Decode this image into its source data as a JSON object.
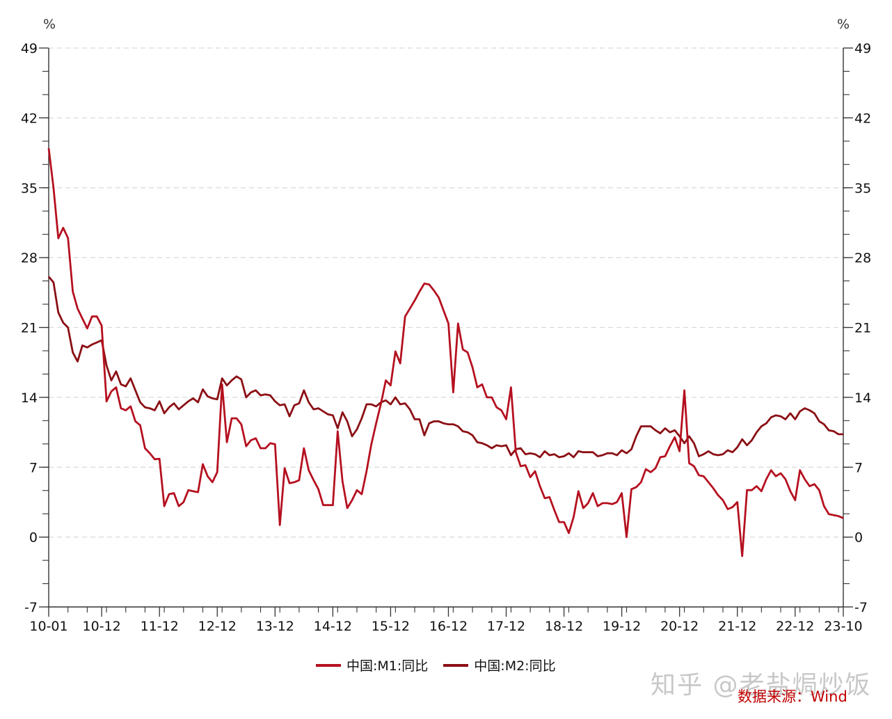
{
  "chart_data": {
    "type": "line",
    "title": "",
    "xlabel": "",
    "ylabel_left": "%",
    "ylabel_right": "%",
    "ylim": [
      -7,
      49
    ],
    "yticks": [
      -7,
      0,
      7,
      14,
      21,
      28,
      35,
      42,
      49
    ],
    "grid": "horizontal dashed",
    "legend_position": "bottom",
    "x_start": "2010-01",
    "x_end": "2023-10",
    "x_tick_labels": [
      "10-01",
      "10-12",
      "11-12",
      "12-12",
      "13-12",
      "14-12",
      "15-12",
      "16-12",
      "17-12",
      "18-12",
      "19-12",
      "20-12",
      "21-12",
      "22-12",
      "23-10"
    ],
    "x_tick_index": [
      0,
      11,
      23,
      35,
      47,
      59,
      71,
      83,
      95,
      107,
      119,
      131,
      143,
      155,
      165
    ],
    "series": [
      {
        "name": "中国:M1:同比",
        "color": "#b5101f",
        "values": [
          38.96,
          35.0,
          29.94,
          30.99,
          29.97,
          24.6,
          22.9,
          21.9,
          20.9,
          22.1,
          22.1,
          21.19,
          13.6,
          14.6,
          15.0,
          12.9,
          12.7,
          13.1,
          11.6,
          11.2,
          8.9,
          8.4,
          7.8,
          7.85,
          3.1,
          4.3,
          4.4,
          3.1,
          3.5,
          4.7,
          4.6,
          4.5,
          7.3,
          6.1,
          5.5,
          6.5,
          15.3,
          9.5,
          11.9,
          11.9,
          11.3,
          9.1,
          9.7,
          9.9,
          8.9,
          8.9,
          9.4,
          9.3,
          1.2,
          6.9,
          5.4,
          5.5,
          5.7,
          8.9,
          6.7,
          5.7,
          4.8,
          3.2,
          3.2,
          3.2,
          10.6,
          5.6,
          2.9,
          3.7,
          4.7,
          4.3,
          6.6,
          9.3,
          11.4,
          13.4,
          15.7,
          15.2,
          18.6,
          17.4,
          22.1,
          22.9,
          23.7,
          24.6,
          25.4,
          25.3,
          24.7,
          24.0,
          22.7,
          21.4,
          14.5,
          21.4,
          18.8,
          18.5,
          17.0,
          15.0,
          15.3,
          14.0,
          14.0,
          13.0,
          12.7,
          11.8,
          15.0,
          8.5,
          7.1,
          7.2,
          6.0,
          6.6,
          5.1,
          3.9,
          4.0,
          2.7,
          1.5,
          1.5,
          0.4,
          2.0,
          4.6,
          2.9,
          3.4,
          4.4,
          3.1,
          3.4,
          3.4,
          3.3,
          3.5,
          4.4,
          0.0,
          4.8,
          5.0,
          5.5,
          6.8,
          6.5,
          6.9,
          8.0,
          8.1,
          9.1,
          10.0,
          8.6,
          14.7,
          7.4,
          7.1,
          6.2,
          6.1,
          5.5,
          4.9,
          4.2,
          3.7,
          2.8,
          3.0,
          3.5,
          -1.9,
          4.7,
          4.7,
          5.1,
          4.6,
          5.8,
          6.7,
          6.1,
          6.4,
          5.8,
          4.6,
          3.7,
          6.7,
          5.8,
          5.1,
          5.3,
          4.7,
          3.1,
          2.3,
          2.2,
          2.1,
          1.9
        ]
      },
      {
        "name": "中国:M2:同比",
        "color": "#8b0f14",
        "values": [
          26.09,
          25.52,
          22.5,
          21.48,
          21.0,
          18.5,
          17.6,
          19.2,
          19.0,
          19.3,
          19.5,
          19.72,
          17.2,
          15.7,
          16.6,
          15.3,
          15.1,
          15.9,
          14.7,
          13.5,
          13.0,
          12.9,
          12.7,
          13.6,
          12.4,
          13.0,
          13.4,
          12.8,
          13.2,
          13.6,
          13.9,
          13.5,
          14.8,
          14.1,
          13.9,
          13.8,
          15.9,
          15.2,
          15.7,
          16.1,
          15.8,
          14.0,
          14.5,
          14.7,
          14.2,
          14.3,
          14.2,
          13.6,
          13.2,
          13.3,
          12.1,
          13.2,
          13.4,
          14.7,
          13.5,
          12.8,
          12.9,
          12.6,
          12.3,
          12.2,
          10.9,
          12.5,
          11.6,
          10.1,
          10.8,
          11.9,
          13.3,
          13.3,
          13.1,
          13.5,
          13.7,
          13.3,
          14.0,
          13.3,
          13.4,
          12.8,
          11.8,
          11.8,
          10.2,
          11.4,
          11.6,
          11.6,
          11.4,
          11.3,
          11.3,
          11.1,
          10.6,
          10.5,
          10.2,
          9.5,
          9.4,
          9.2,
          8.9,
          9.2,
          9.1,
          9.2,
          8.2,
          8.8,
          8.9,
          8.3,
          8.4,
          8.3,
          8.0,
          8.6,
          8.2,
          8.3,
          8.0,
          8.1,
          8.4,
          8.0,
          8.6,
          8.5,
          8.5,
          8.5,
          8.1,
          8.2,
          8.4,
          8.4,
          8.2,
          8.7,
          8.4,
          8.8,
          10.1,
          11.1,
          11.1,
          11.1,
          10.7,
          10.4,
          10.9,
          10.5,
          10.7,
          10.1,
          9.4,
          10.1,
          9.4,
          8.1,
          8.3,
          8.6,
          8.3,
          8.2,
          8.3,
          8.7,
          8.5,
          9.0,
          9.8,
          9.2,
          9.7,
          10.5,
          11.1,
          11.4,
          12.0,
          12.2,
          12.1,
          11.8,
          12.4,
          11.8,
          12.6,
          12.9,
          12.7,
          12.4,
          11.6,
          11.3,
          10.7,
          10.6,
          10.3,
          10.3
        ]
      }
    ]
  },
  "axes": {
    "left_unit": "%",
    "right_unit": "%",
    "y_labels": [
      "49",
      "42",
      "35",
      "28",
      "21",
      "14",
      "7",
      "0",
      "-7"
    ]
  },
  "legend": {
    "items": [
      {
        "label": "中国:M1:同比",
        "color": "#b5101f"
      },
      {
        "label": "中国:M2:同比",
        "color": "#8b0f14"
      }
    ]
  },
  "watermark": "知乎 @老盐焗炒饭",
  "source": "数据来源：Wind"
}
